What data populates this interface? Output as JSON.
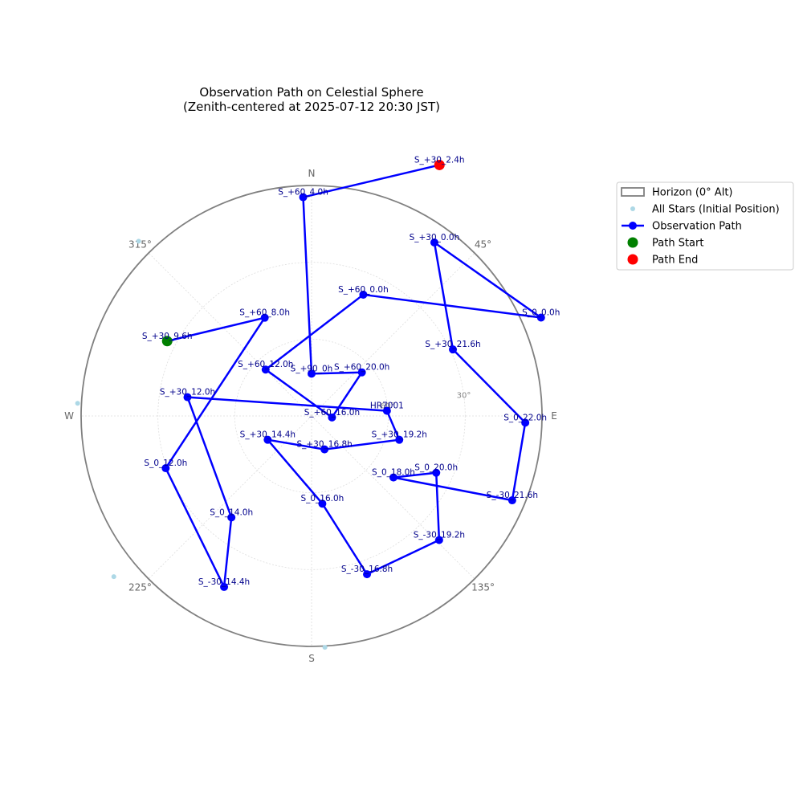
{
  "chart_data": {
    "type": "scatter",
    "projection": "polar zenith-centered, altitude 90 at center, azimuth clockwise from N",
    "title_line1": "Observation Path on Celestial Sphere",
    "title_line2": "(Zenith-centered at 2025-07-12 20:30 JST)",
    "compass": [
      {
        "label": "N",
        "az": 0
      },
      {
        "label": "E",
        "az": 90
      },
      {
        "label": "S",
        "az": 180
      },
      {
        "label": "W",
        "az": 270
      },
      {
        "label": "45°",
        "az": 45
      },
      {
        "label": "135°",
        "az": 135
      },
      {
        "label": "225°",
        "az": 225
      },
      {
        "label": "315°",
        "az": 315
      }
    ],
    "altitude_rings": [
      {
        "alt": 60,
        "label": "60°"
      },
      {
        "alt": 30,
        "label": "30°"
      },
      {
        "alt": 0,
        "label": ""
      }
    ],
    "colors": {
      "horizon": "#808080",
      "grid": "#dddddd",
      "path": "#0000ff",
      "point_label": "#00008b",
      "all_stars": "#add8e6",
      "start": "#008000",
      "end": "#ff0000"
    },
    "all_stars": [
      {
        "az": 315.3,
        "alt": -6.0
      },
      {
        "az": 273.1,
        "alt": -1.5
      },
      {
        "az": 230.9,
        "alt": -9.5
      },
      {
        "az": 176.7,
        "alt": -0.5
      }
    ],
    "path": [
      {
        "name": "S_+30_9.6h",
        "az": 297.4,
        "alt": 26.5
      },
      {
        "name": "S_+60_8.0h",
        "az": 334.5,
        "alt": 47.5
      },
      {
        "name": "S_0_12.0h",
        "az": 250.3,
        "alt": 29.5
      },
      {
        "name": "S_-30_14.4h",
        "az": 207.1,
        "alt": 15.0
      },
      {
        "name": "S_0_14.0h",
        "az": 218.3,
        "alt": 39.5
      },
      {
        "name": "S_+30_12.0h",
        "az": 278.6,
        "alt": 41.0
      },
      {
        "name": "HR7001",
        "az": 86.1,
        "alt": 60.5
      },
      {
        "name": "S_+30_19.2h",
        "az": 105.2,
        "alt": 54.5
      },
      {
        "name": "S_+30_16.8h",
        "az": 158.8,
        "alt": 76.0
      },
      {
        "name": "S_+30_14.4h",
        "az": 241.5,
        "alt": 70.5
      },
      {
        "name": "S_0_16.0h",
        "az": 173.0,
        "alt": 55.5
      },
      {
        "name": "S_-30_16.8h",
        "az": 160.7,
        "alt": 24.5
      },
      {
        "name": "S_-30_19.2h",
        "az": 134.2,
        "alt": 20.5
      },
      {
        "name": "S_0_20.0h",
        "az": 114.5,
        "alt": 36.5
      },
      {
        "name": "S_0_18.0h",
        "az": 126.9,
        "alt": 50.0
      },
      {
        "name": "S_-30_21.6h",
        "az": 112.8,
        "alt": 5.0
      },
      {
        "name": "S_0_22.0h",
        "az": 91.8,
        "alt": 6.5
      },
      {
        "name": "S_+30_21.6h",
        "az": 64.8,
        "alt": 29.0
      },
      {
        "name": "S_+30_0.0h",
        "az": 35.3,
        "alt": 7.0
      },
      {
        "name": "S_0_0.0h",
        "az": 66.8,
        "alt": -7.5
      },
      {
        "name": "S_+60_0.0h",
        "az": 23.1,
        "alt": 38.5
      },
      {
        "name": "S_+60_12.0h",
        "az": 315.3,
        "alt": 64.5
      },
      {
        "name": "S_+60_16.0h",
        "az": 94.1,
        "alt": 82.0
      },
      {
        "name": "S_+60_20.0h",
        "az": 49.1,
        "alt": 64.0
      },
      {
        "name": "S_+90_0h",
        "az": 0.0,
        "alt": 73.5
      },
      {
        "name": "S_+60_4.0h",
        "az": 357.8,
        "alt": 4.5
      },
      {
        "name": "S_+30_2.4h",
        "az": 27.0,
        "alt": -20.0
      }
    ],
    "legend": {
      "placement": "upper right outside",
      "items": [
        {
          "label": "Horizon (0° Alt)",
          "kind": "box",
          "color": "#808080"
        },
        {
          "label": "All Stars (Initial Position)",
          "kind": "dot-small",
          "color": "#add8e6"
        },
        {
          "label": "Observation Path",
          "kind": "line-marker",
          "color": "#0000ff"
        },
        {
          "label": "Path Start",
          "kind": "dot",
          "color": "#008000"
        },
        {
          "label": "Path End",
          "kind": "dot",
          "color": "#ff0000"
        }
      ]
    }
  }
}
